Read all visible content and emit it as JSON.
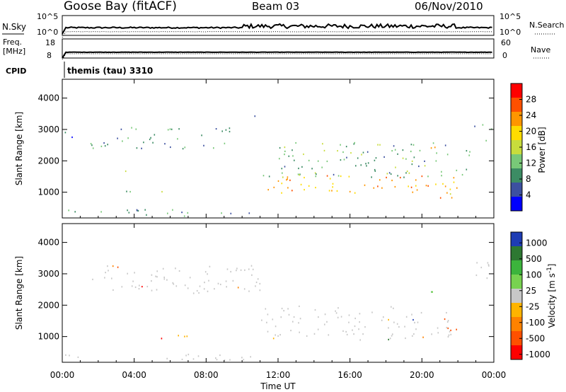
{
  "header": {
    "station": "Goose Bay (fitACF)",
    "beam": "Beam 03",
    "date": "06/Nov/2010"
  },
  "meta_panels": {
    "nsky_label": "N.Sky",
    "nsky_ticks": [
      "10^5",
      "10^0"
    ],
    "nsearch_label": "N.Search",
    "nsearch_ticks": [
      "10^5",
      "10^0"
    ],
    "freq_label": "Freq.",
    "freq_unit": "[MHz]",
    "freq_ticks": [
      "18",
      "8"
    ],
    "nave_label": "Nave",
    "nave_ticks": [
      "60",
      "0"
    ],
    "cpid_label": "CPID",
    "cpid_value": "themis (tau) 3310"
  },
  "chart_data": [
    {
      "type": "heatmap",
      "name": "power",
      "ylabel": "Slant Range [km]",
      "xlabel": "Time UT",
      "x_ticks": [
        "00:00",
        "04:00",
        "08:00",
        "12:00",
        "16:00",
        "20:00",
        "00:00"
      ],
      "x_range_hours": [
        0,
        24
      ],
      "y_ticks": [
        1000,
        2000,
        3000,
        4000
      ],
      "ylim": [
        180,
        4600
      ],
      "colorbar": {
        "label": "Power [dB]",
        "ticks": [
          "4",
          "8",
          "12",
          "16",
          "20",
          "24",
          "28"
        ],
        "range": [
          0,
          30
        ],
        "colors": [
          "#0000ff",
          "#3c50a0",
          "#3c8c64",
          "#78c878",
          "#c8dc3c",
          "#ffdc00",
          "#ff9600",
          "#ff5000",
          "#ff0000"
        ]
      },
      "echo_regions": [
        {
          "t": [
            0.0,
            11.2
          ],
          "r": [
            260,
            480
          ],
          "level": 8
        },
        {
          "t": [
            0.0,
            1.0
          ],
          "r": [
            2750,
            3050
          ],
          "level": 5
        },
        {
          "t": [
            1.5,
            9.6
          ],
          "r": [
            2400,
            3100
          ],
          "level": 8
        },
        {
          "t": [
            3.3,
            6.2
          ],
          "r": [
            900,
            1050
          ],
          "level": 10
        },
        {
          "t": [
            2.8,
            3.5
          ],
          "r": [
            1500,
            1700
          ],
          "level": 10
        },
        {
          "t": [
            10.3,
            11.0
          ],
          "r": [
            3400,
            3700
          ],
          "level": 4
        },
        {
          "t": [
            11.0,
            21.8
          ],
          "r": [
            1000,
            1600
          ],
          "level": 22
        },
        {
          "t": [
            11.0,
            22.7
          ],
          "r": [
            1500,
            2600
          ],
          "level": 10
        },
        {
          "t": [
            20.0,
            21.0
          ],
          "r": [
            2300,
            2500
          ],
          "level": 18
        },
        {
          "t": [
            21.0,
            22.7
          ],
          "r": [
            800,
            1500
          ],
          "level": 20
        },
        {
          "t": [
            22.8,
            24.0
          ],
          "r": [
            2600,
            3200
          ],
          "level": 8
        }
      ]
    },
    {
      "type": "heatmap",
      "name": "velocity",
      "ylabel": "Slant Range [km]",
      "xlabel": "Time UT",
      "x_ticks": [
        "00:00",
        "04:00",
        "08:00",
        "12:00",
        "16:00",
        "20:00",
        "00:00"
      ],
      "x_range_hours": [
        0,
        24
      ],
      "y_ticks": [
        1000,
        2000,
        3000,
        4000
      ],
      "ylim": [
        180,
        4600
      ],
      "colorbar": {
        "label": "Velocity [m s^-1]",
        "ticks": [
          "1000",
          "500",
          "100",
          "25",
          "-25",
          "-100",
          "-500",
          "-1000"
        ],
        "colors": [
          "#1e3cb4",
          "#2d7832",
          "#3cb43c",
          "#78d250",
          "#c8c8c8",
          "#ffb400",
          "#ff8200",
          "#ff5000",
          "#ff0000"
        ]
      },
      "echo_regions": [
        {
          "t": [
            0.0,
            11.2
          ],
          "r": [
            260,
            480
          ],
          "class": "ground"
        },
        {
          "t": [
            5.0,
            7.0
          ],
          "r": [
            900,
            1080
          ],
          "class": "-100"
        },
        {
          "t": [
            1.5,
            11.0
          ],
          "r": [
            2400,
            3300
          ],
          "class": "ground"
        },
        {
          "t": [
            11.0,
            21.8
          ],
          "r": [
            900,
            2000
          ],
          "class": "ground"
        },
        {
          "t": [
            21.0,
            22.5
          ],
          "r": [
            1200,
            1600
          ],
          "class": "-500"
        },
        {
          "t": [
            20.2,
            21.2
          ],
          "r": [
            2300,
            2600
          ],
          "class": "100"
        },
        {
          "t": [
            22.8,
            24.0
          ],
          "r": [
            2700,
            3400
          ],
          "class": "ground"
        }
      ]
    }
  ]
}
